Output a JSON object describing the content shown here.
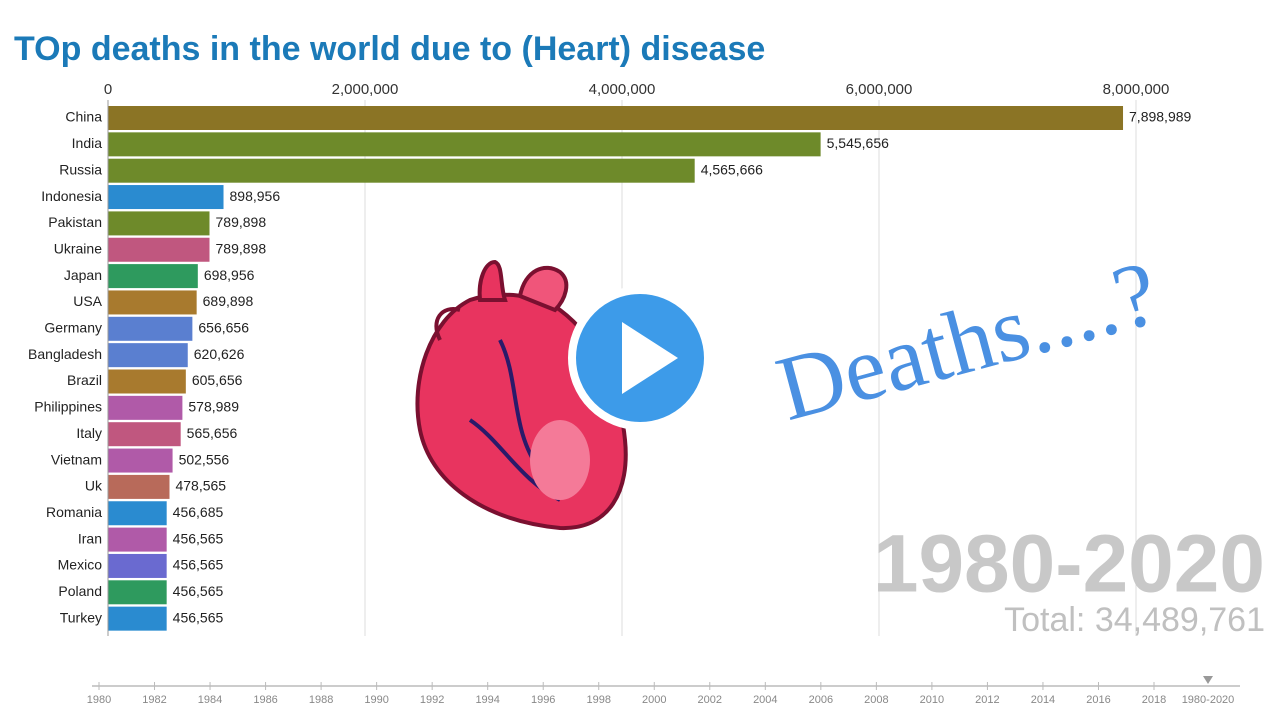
{
  "chart_data": {
    "type": "bar",
    "orientation": "horizontal",
    "title": "TOp deaths in the world due to (Heart) disease",
    "categories": [
      "China",
      "India",
      "Russia",
      "Indonesia",
      "Pakistan",
      "Ukraine",
      "Japan",
      "USA",
      "Germany",
      "Bangladesh",
      "Brazil",
      "Philippines",
      "Italy",
      "Vietnam",
      "Uk",
      "Romania",
      "Iran",
      "Mexico",
      "Poland",
      "Turkey"
    ],
    "values": [
      7898989,
      5545656,
      4565666,
      898956,
      789898,
      789898,
      698956,
      689898,
      656656,
      620626,
      605656,
      578989,
      565656,
      502556,
      478565,
      456685,
      456565,
      456565,
      456565,
      456565
    ],
    "value_labels": [
      "7,898,989",
      "5,545,656",
      "4,565,666",
      "898,956",
      "789,898",
      "789,898",
      "698,956",
      "689,898",
      "656,656",
      "620,626",
      "605,656",
      "578,989",
      "565,656",
      "502,556",
      "478,565",
      "456,685",
      "456,565",
      "456,565",
      "456,565",
      "456,565"
    ],
    "colors": [
      "#8b7425",
      "#6e8a2a",
      "#6e8a2a",
      "#2a8bd0",
      "#6e8a2a",
      "#c0577f",
      "#2e9a5e",
      "#a87a2e",
      "#5a7fd0",
      "#5a7fd0",
      "#a87a2e",
      "#b05aa8",
      "#c0577f",
      "#b05aa8",
      "#b86a5a",
      "#2a8bd0",
      "#b05aa8",
      "#6a6ad0",
      "#2e9a5e",
      "#2a8bd0"
    ],
    "xlim": [
      0,
      8000000
    ],
    "xticks": [
      0,
      {
        "value": 2000000,
        "label": "2,000,000"
      },
      {
        "value": 4000000,
        "label": "4,000,000"
      },
      {
        "value": 6000000,
        "label": "6,000,000"
      },
      {
        "value": 8000000,
        "label": "8,000,000"
      }
    ],
    "grid": true,
    "annotation": "Deaths....?",
    "period": "1980-2020",
    "total_label": "Total: 34,489,761",
    "timeline": {
      "ticks": [
        1980,
        1982,
        1984,
        1986,
        1988,
        1990,
        1992,
        1994,
        1996,
        1998,
        2000,
        2002,
        2004,
        2006,
        2008,
        2010,
        2012,
        2014,
        2016,
        2018
      ],
      "current": "1980-2020"
    }
  }
}
